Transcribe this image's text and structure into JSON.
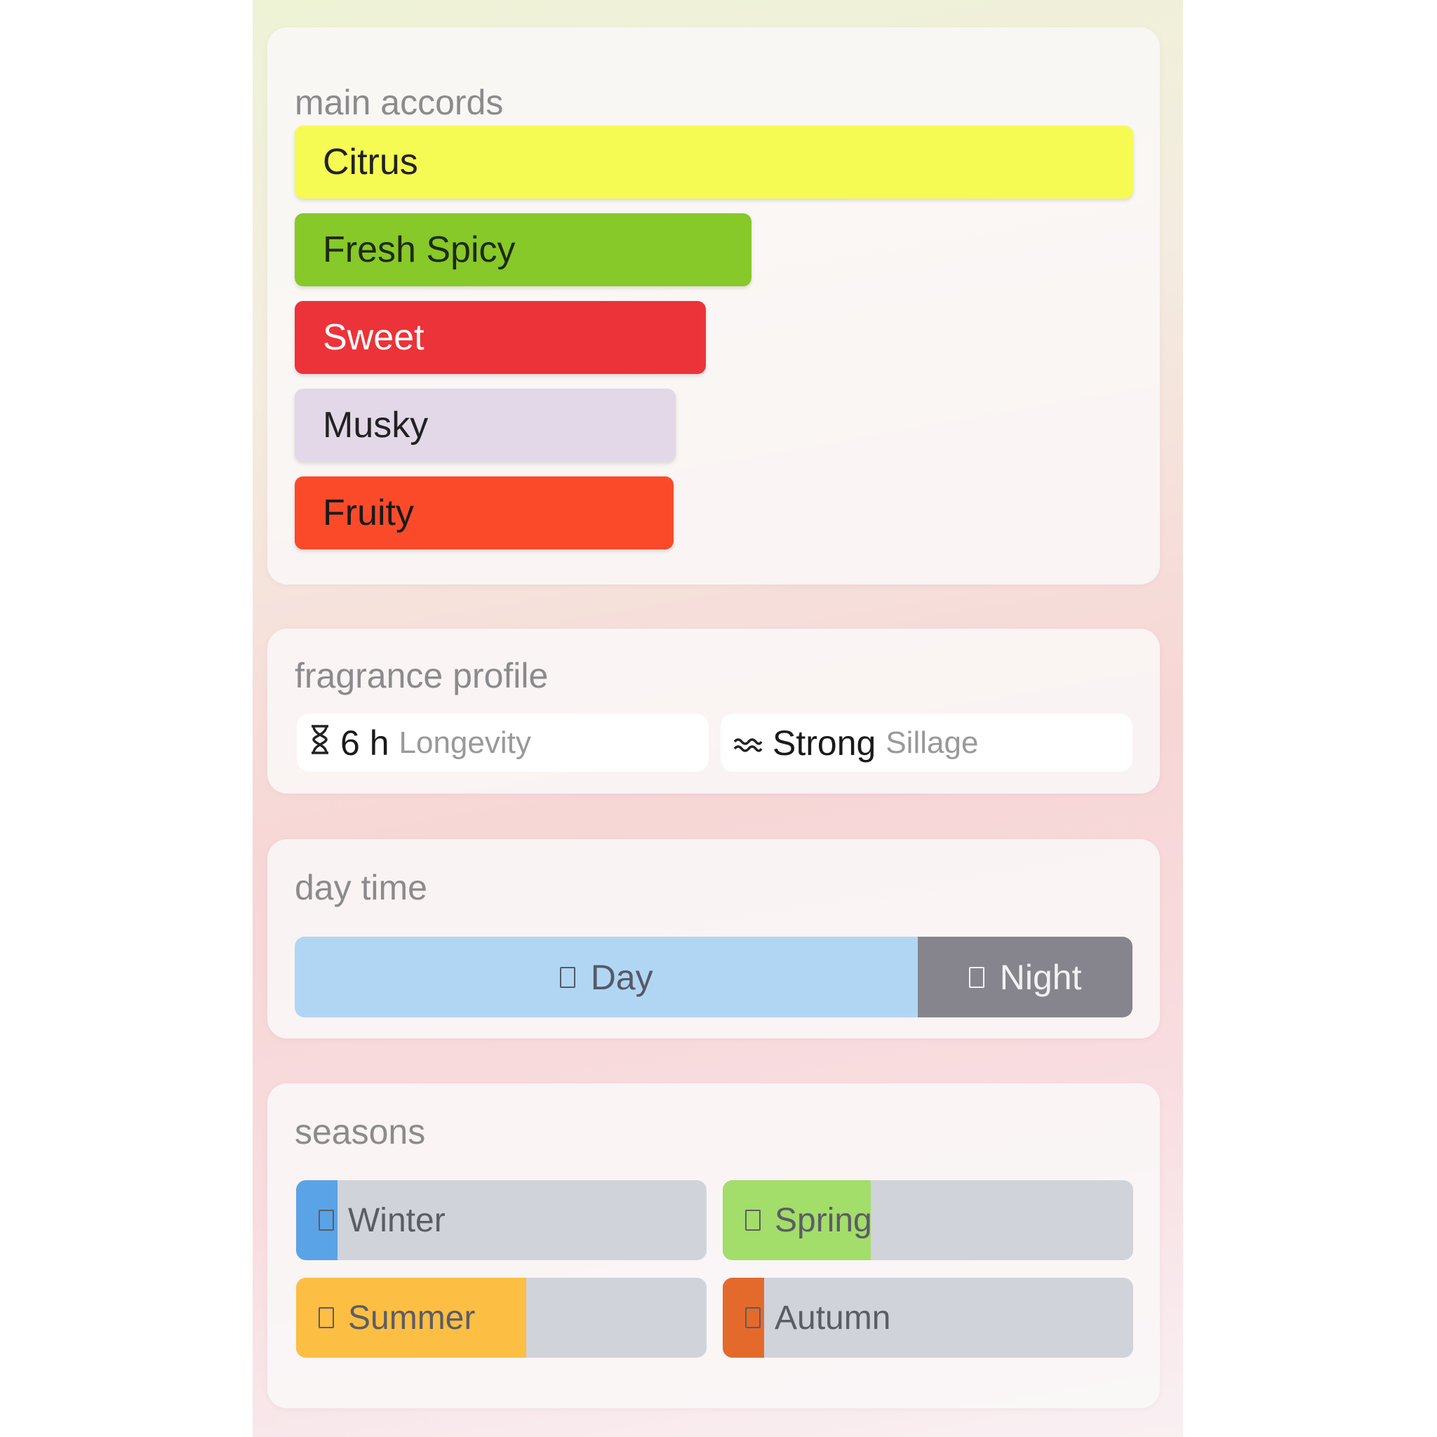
{
  "main_accords": {
    "title": "main accords",
    "items": [
      {
        "label": "Citrus",
        "percent": 100,
        "color": "#f5fb52",
        "text_color": "#222222"
      },
      {
        "label": "Fresh Spicy",
        "percent": 54.5,
        "color": "#86c928",
        "text_color": "#1f2a10"
      },
      {
        "label": "Sweet",
        "percent": 49,
        "color": "#ec3339",
        "text_color": "#ffffff"
      },
      {
        "label": "Musky",
        "percent": 45.4,
        "color": "#e3d8e8",
        "text_color": "#222222"
      },
      {
        "label": "Fruity",
        "percent": 45.2,
        "color": "#fb4a29",
        "text_color": "#1a1a1a"
      }
    ]
  },
  "fragrance_profile": {
    "title": "fragrance profile",
    "longevity": {
      "icon": "hourglass-icon",
      "value": "6 h",
      "label": "Longevity"
    },
    "sillage": {
      "icon": "waves-icon",
      "value": "Strong",
      "label": "Sillage"
    }
  },
  "day_time": {
    "title": "day time",
    "day": {
      "label": "Day",
      "percent": 74.4,
      "color": "#b1d6f4",
      "icon": "missing-glyph-icon"
    },
    "night": {
      "label": "Night",
      "percent": 25.6,
      "color": "#86858d",
      "icon": "missing-glyph-icon"
    }
  },
  "seasons": {
    "title": "seasons",
    "items": [
      {
        "label": "Winter",
        "percent": 10,
        "color": "#5aa3e6"
      },
      {
        "label": "Spring",
        "percent": 36,
        "color": "#a3dd6a"
      },
      {
        "label": "Summer",
        "percent": 56,
        "color": "#fdbe44"
      },
      {
        "label": "Autumn",
        "percent": 10,
        "color": "#e46a2c"
      }
    ]
  }
}
